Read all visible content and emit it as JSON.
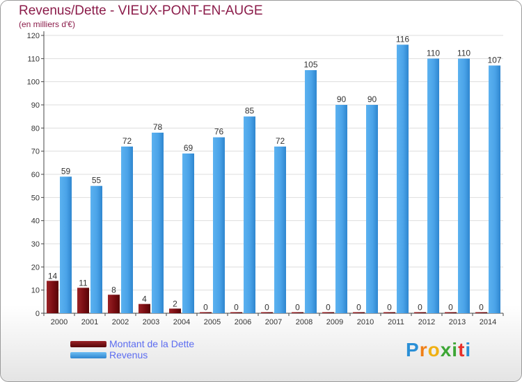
{
  "title": "Revenus/Dette - VIEUX-PONT-EN-AUGE",
  "subtitle": "(en milliers d'€)",
  "legend": {
    "debt_label": "Montant de la Dette",
    "revenue_label": "Revenus"
  },
  "logo": {
    "text": "Proxiti",
    "letters": [
      "P",
      "r",
      "o",
      "x",
      "i",
      "t",
      "i"
    ],
    "letter_colors": [
      "#2a8fd6",
      "#f07f16",
      "#f0b013",
      "#3da635",
      "#3da635",
      "#e8302a",
      "#2a8fd6"
    ]
  },
  "colors": {
    "debt": "#7a0d12",
    "revenue": "#4aa3e8",
    "grid": "#dddddd",
    "axis": "#444444",
    "text": "#333333"
  },
  "chart_data": {
    "type": "bar",
    "title": "Revenus/Dette - VIEUX-PONT-EN-AUGE",
    "ylabel": "(en milliers d'€)",
    "xlabel": "",
    "ylim": [
      0,
      120
    ],
    "yticks": [
      0,
      10,
      20,
      30,
      40,
      50,
      60,
      70,
      80,
      90,
      100,
      110,
      120
    ],
    "grid": true,
    "categories": [
      "2000",
      "2001",
      "2002",
      "2003",
      "2004",
      "2005",
      "2006",
      "2007",
      "2008",
      "2009",
      "2010",
      "2011",
      "2012",
      "2013",
      "2014"
    ],
    "series": [
      {
        "name": "Montant de la Dette",
        "values": [
          14,
          11,
          8,
          4,
          2,
          0,
          0,
          0,
          0,
          0,
          0,
          0,
          0,
          0,
          0
        ]
      },
      {
        "name": "Revenus",
        "values": [
          59,
          55,
          72,
          78,
          69,
          76,
          85,
          72,
          105,
          90,
          90,
          116,
          110,
          110,
          107
        ]
      }
    ]
  }
}
